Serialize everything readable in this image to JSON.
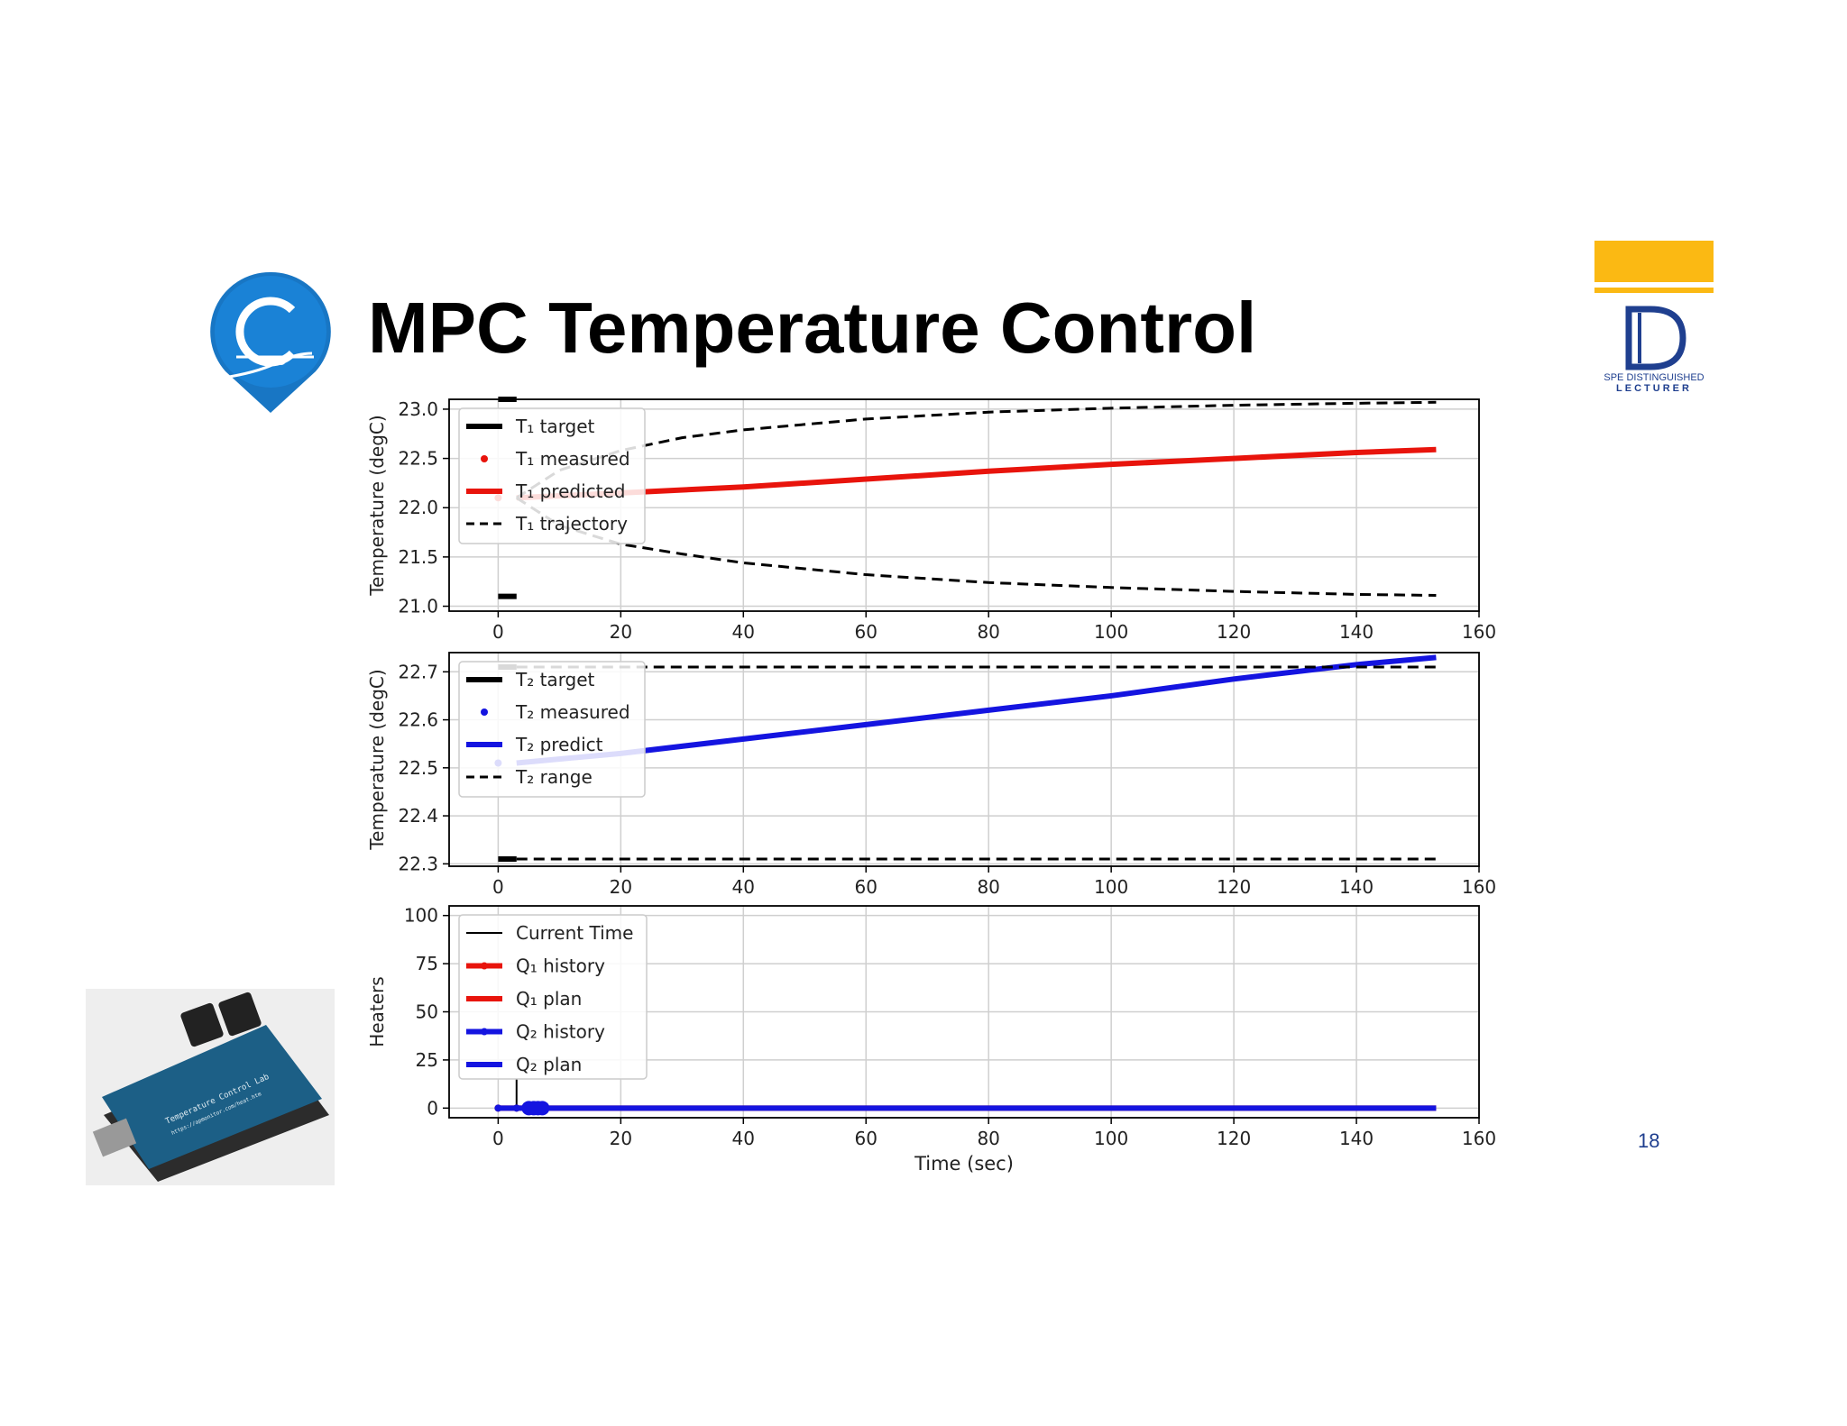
{
  "slide": {
    "title": "MPC Temperature Control",
    "page_number": "18",
    "lecturer_badge": {
      "line1": "SPE DISTINGUISHED",
      "line2": "LECTURER"
    },
    "board_text": [
      "Temperature Control Lab",
      "https://apmonitor.com/heat.htm"
    ]
  },
  "colors": {
    "red": "#e8140c",
    "blue": "#1414e0",
    "black": "#000000",
    "grid": "#cfcfcf",
    "gold": "#fbb913",
    "navy": "#1f3f8f",
    "logo_blue": "#1876c4"
  },
  "chart_data": [
    {
      "type": "line",
      "ylabel": "Temperature (degC)",
      "xlim": [
        -8,
        160
      ],
      "ylim": [
        20.95,
        23.1
      ],
      "xticks": [
        "0",
        "20",
        "40",
        "60",
        "80",
        "100",
        "120",
        "140",
        "160"
      ],
      "yticks": [
        "21.0",
        "21.5",
        "22.0",
        "22.5",
        "23.0"
      ],
      "grid": true,
      "legend_position": "top-left",
      "legend": [
        "T₁ target",
        "T₁ measured",
        "T₁ predicted",
        "T₁ trajectory"
      ],
      "series": [
        {
          "name": "T₁ target",
          "style": "thick-black",
          "segments": [
            [
              [
                0,
                23.1
              ],
              [
                3,
                23.1
              ]
            ],
            [
              [
                0,
                21.1
              ],
              [
                3,
                21.1
              ]
            ]
          ]
        },
        {
          "name": "T₁ measured",
          "style": "red-dot",
          "points": [
            [
              0,
              22.1
            ]
          ]
        },
        {
          "name": "T₁ predicted",
          "style": "red-line",
          "points": [
            [
              3,
              22.1
            ],
            [
              20,
              22.15
            ],
            [
              40,
              22.21
            ],
            [
              60,
              22.29
            ],
            [
              80,
              22.37
            ],
            [
              100,
              22.44
            ],
            [
              120,
              22.5
            ],
            [
              140,
              22.56
            ],
            [
              153,
              22.59
            ]
          ]
        },
        {
          "name": "T₁ trajectory",
          "style": "dashed-black",
          "points": [
            [
              3,
              22.1
            ],
            [
              10,
              22.38
            ],
            [
              20,
              22.58
            ],
            [
              30,
              22.71
            ],
            [
              40,
              22.79
            ],
            [
              60,
              22.9
            ],
            [
              80,
              22.97
            ],
            [
              100,
              23.01
            ],
            [
              120,
              23.04
            ],
            [
              140,
              23.06
            ],
            [
              153,
              23.07
            ]
          ]
        },
        {
          "name": "T₁ trajectory lower",
          "style": "dashed-black",
          "points": [
            [
              3,
              22.1
            ],
            [
              10,
              21.82
            ],
            [
              20,
              21.63
            ],
            [
              30,
              21.53
            ],
            [
              40,
              21.44
            ],
            [
              60,
              21.32
            ],
            [
              80,
              21.24
            ],
            [
              100,
              21.19
            ],
            [
              120,
              21.15
            ],
            [
              140,
              21.12
            ],
            [
              153,
              21.11
            ]
          ]
        }
      ]
    },
    {
      "type": "line",
      "ylabel": "Temperature (degC)",
      "xlim": [
        -8,
        160
      ],
      "ylim": [
        22.295,
        22.74
      ],
      "xticks": [
        "0",
        "20",
        "40",
        "60",
        "80",
        "100",
        "120",
        "140",
        "160"
      ],
      "yticks": [
        "22.3",
        "22.4",
        "22.5",
        "22.6",
        "22.7"
      ],
      "grid": true,
      "legend_position": "top-left",
      "legend": [
        "T₂ target",
        "T₂ measured",
        "T₂ predict",
        "T₂ range"
      ],
      "series": [
        {
          "name": "T₂ target",
          "style": "thick-black",
          "segments": [
            [
              [
                0,
                22.71
              ],
              [
                3,
                22.71
              ]
            ],
            [
              [
                0,
                22.31
              ],
              [
                3,
                22.31
              ]
            ]
          ]
        },
        {
          "name": "T₂ measured",
          "style": "blue-dot",
          "points": [
            [
              0,
              22.51
            ]
          ]
        },
        {
          "name": "T₂ predict",
          "style": "blue-line",
          "points": [
            [
              3,
              22.51
            ],
            [
              20,
              22.53
            ],
            [
              40,
              22.56
            ],
            [
              60,
              22.59
            ],
            [
              80,
              22.62
            ],
            [
              100,
              22.65
            ],
            [
              120,
              22.685
            ],
            [
              140,
              22.715
            ],
            [
              153,
              22.73
            ]
          ]
        },
        {
          "name": "T₂ range",
          "style": "dashed-black",
          "points": [
            [
              3,
              22.71
            ],
            [
              153,
              22.71
            ]
          ]
        },
        {
          "name": "T₂ range lower",
          "style": "dashed-black",
          "points": [
            [
              3,
              22.31
            ],
            [
              153,
              22.31
            ]
          ]
        }
      ]
    },
    {
      "type": "line",
      "ylabel": "Heaters",
      "xlabel": "Time (sec)",
      "xlim": [
        -8,
        160
      ],
      "ylim": [
        -5,
        105
      ],
      "xticks": [
        "0",
        "20",
        "40",
        "60",
        "80",
        "100",
        "120",
        "140",
        "160"
      ],
      "yticks": [
        "0",
        "25",
        "50",
        "75",
        "100"
      ],
      "grid": true,
      "legend_position": "top-left",
      "legend": [
        "Current Time",
        "Q₁ history",
        "Q₁ plan",
        "Q₂ history",
        "Q₂ plan"
      ],
      "series": [
        {
          "name": "Current Time",
          "style": "thin-black",
          "points": [
            [
              3,
              0
            ],
            [
              3,
              15
            ]
          ]
        },
        {
          "name": "Q₁ history",
          "style": "red-line-marker",
          "points": [
            [
              0,
              0
            ],
            [
              3,
              0
            ]
          ]
        },
        {
          "name": "Q₁ plan",
          "style": "red-line",
          "points": [
            [
              3,
              0
            ],
            [
              153,
              0
            ]
          ]
        },
        {
          "name": "Q₂ history",
          "style": "blue-line-marker",
          "points": [
            [
              0,
              0
            ],
            [
              3,
              0
            ]
          ]
        },
        {
          "name": "Q₂ plan",
          "style": "blue-line",
          "points": [
            [
              3,
              0
            ],
            [
              153,
              0
            ]
          ]
        },
        {
          "name": "Q₂ plan markers",
          "style": "blue-markers",
          "points": [
            [
              5,
              0
            ],
            [
              5.8,
              0
            ],
            [
              6.5,
              0
            ],
            [
              7.2,
              0
            ]
          ]
        }
      ]
    }
  ]
}
